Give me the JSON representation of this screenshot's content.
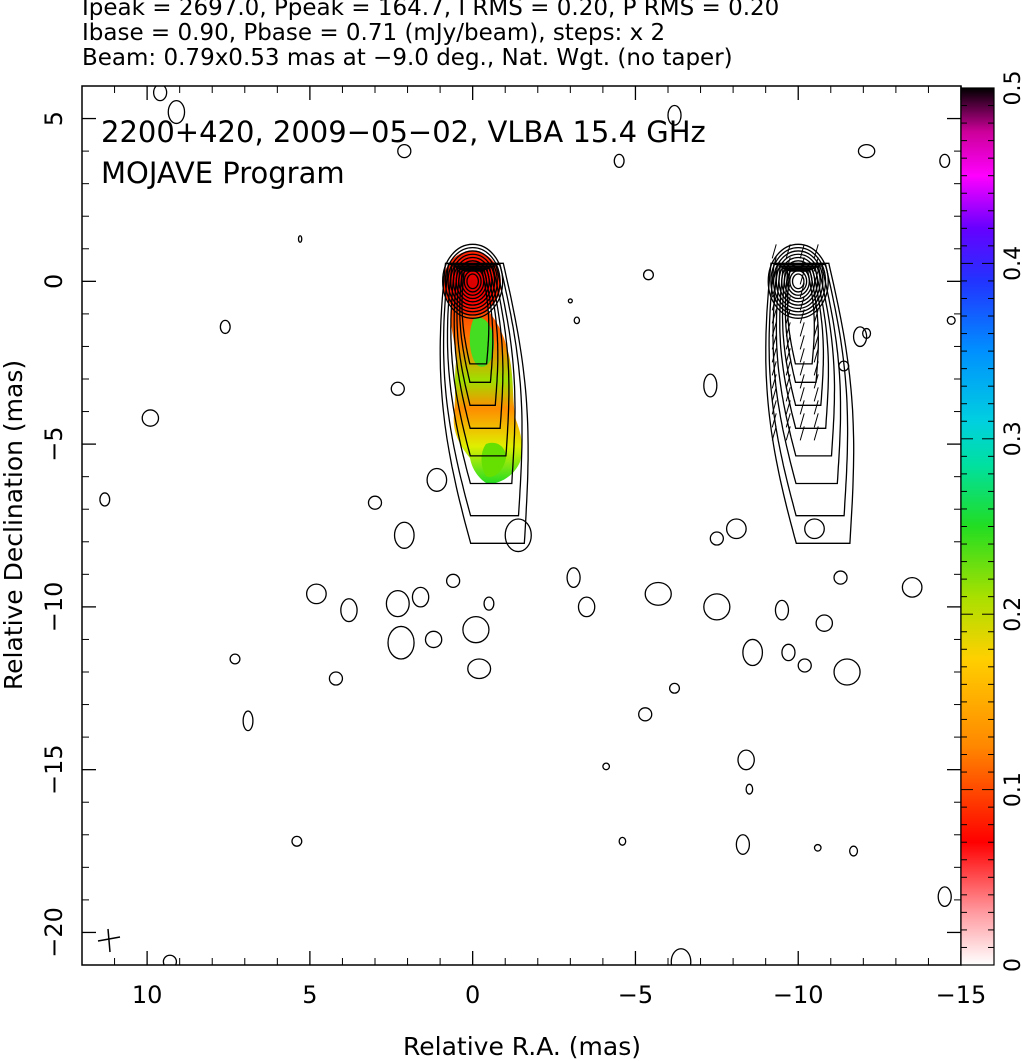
{
  "header": {
    "line1": "Ipeak = 2697.0, Ppeak = 164.7, I RMS = 0.20, P RMS = 0.20",
    "line2": "Ibase = 0.90, Pbase = 0.71 (mJy/beam), steps: x 2",
    "line3": "Beam: 0.79x0.53 mas at −9.0 deg., Nat. Wgt. (no taper)"
  },
  "annotation": {
    "line1": "2200+420, 2009−05−02, VLBA 15.4 GHz",
    "line2": "MOJAVE Program"
  },
  "chart_data": {
    "type": "heatmap",
    "xlabel": "Relative R.A. (mas)",
    "ylabel": "Relative Declination (mas)",
    "xlim": [
      12,
      -15
    ],
    "ylim": [
      -21,
      6
    ],
    "xticks": [
      10,
      5,
      0,
      -5,
      -10,
      -15
    ],
    "yticks": [
      5,
      0,
      -5,
      -10,
      -15,
      -20
    ],
    "xtick_labels": [
      "10",
      "5",
      "0",
      "−5",
      "−10",
      "−15"
    ],
    "ytick_labels": [
      "5",
      "0",
      "−5",
      "−10",
      "−15",
      "−20"
    ],
    "colorbar": {
      "range": [
        0,
        0.5
      ],
      "ticks": [
        0,
        0.1,
        0.2,
        0.3,
        0.4,
        0.5
      ],
      "tick_labels": [
        "0",
        "0.1",
        "0.2",
        "0.3",
        "0.4",
        "0.5"
      ],
      "colors": [
        "#ffffff",
        "#ff9aa0",
        "#ff0000",
        "#ff8800",
        "#ffd000",
        "#a8e000",
        "#22dd22",
        "#00e0a0",
        "#00d0e0",
        "#0090ff",
        "#2233ff",
        "#6600ff",
        "#cc00ff",
        "#ff00ff",
        "#cc0099",
        "#660033",
        "#000000"
      ]
    },
    "stokes_i_contour_levels_mjy": [
      0.9,
      1.8,
      3.6,
      7.2,
      14.4,
      28.8,
      57.6,
      115.2,
      230.4,
      460.8,
      921.6,
      1843.2
    ],
    "core_position": [
      0,
      0
    ],
    "jet_position_angle_deg": 195
  }
}
